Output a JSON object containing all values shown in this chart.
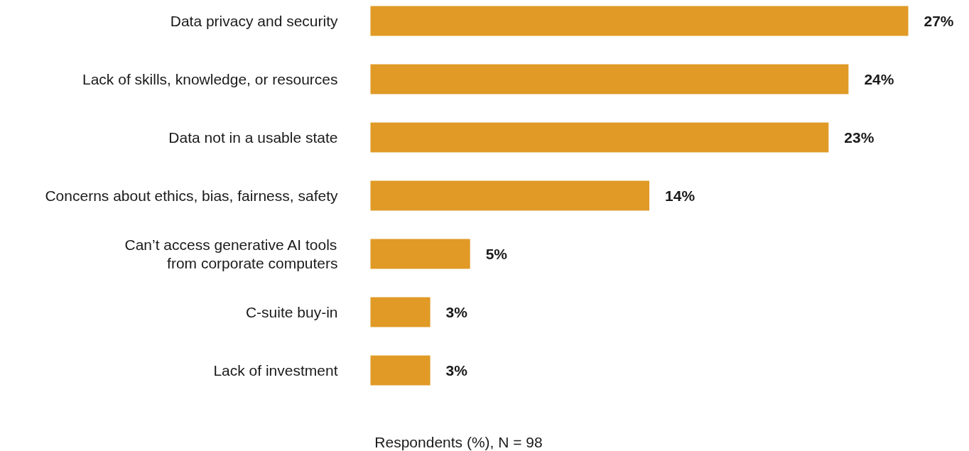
{
  "chart_data": {
    "type": "bar",
    "orientation": "horizontal",
    "xlabel": "Respondents (%), N = 98",
    "categories": [
      "Data privacy and security",
      "Lack of skills, knowledge, or resources",
      "Data not in a usable state",
      "Concerns about ethics, bias, fairness, safety",
      "Can’t access generative AI tools\nfrom corporate computers",
      "C-suite buy-in",
      "Lack of investment"
    ],
    "values": [
      27,
      24,
      23,
      14,
      5,
      3,
      3
    ],
    "value_labels": [
      "27%",
      "24%",
      "23%",
      "14%",
      "5%",
      "3%",
      "3%"
    ],
    "color": "#e09a25",
    "tick_labels": "y"
  }
}
